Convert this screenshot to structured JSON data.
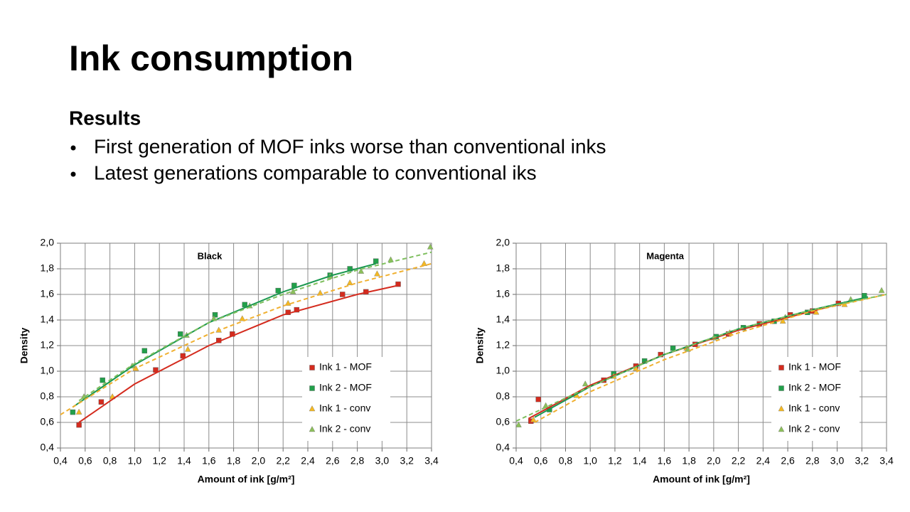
{
  "title": "Ink consumption",
  "section": "Results",
  "bullets": [
    "First generation of MOF inks worse than conventional inks",
    "Latest generations comparable to conventional iks"
  ],
  "chart_data": [
    {
      "type": "scatter",
      "title": "Black",
      "x_label": "Amount of ink [g/m²]",
      "y_label": "Density",
      "grid": true,
      "xlim": [
        0.4,
        3.4
      ],
      "ylim": [
        0.4,
        2.0
      ],
      "xticks": [
        {
          "value": 0.4,
          "label": "0,4"
        },
        {
          "value": 0.6,
          "label": "0,6"
        },
        {
          "value": 0.8,
          "label": "0,8"
        },
        {
          "value": 1.0,
          "label": "1,0"
        },
        {
          "value": 1.2,
          "label": "1,2"
        },
        {
          "value": 1.4,
          "label": "1,4"
        },
        {
          "value": 1.6,
          "label": "1,6"
        },
        {
          "value": 1.8,
          "label": "1,8"
        },
        {
          "value": 2.0,
          "label": "2,0"
        },
        {
          "value": 2.2,
          "label": "2,2"
        },
        {
          "value": 2.4,
          "label": "2,4"
        },
        {
          "value": 2.6,
          "label": "2,6"
        },
        {
          "value": 2.8,
          "label": "2,8"
        },
        {
          "value": 3.0,
          "label": "3,0"
        },
        {
          "value": 3.2,
          "label": "3,2"
        },
        {
          "value": 3.4,
          "label": "3,4"
        }
      ],
      "yticks": [
        {
          "value": 0.4,
          "label": "0,4"
        },
        {
          "value": 0.6,
          "label": "0,6"
        },
        {
          "value": 0.8,
          "label": "0,8"
        },
        {
          "value": 1.0,
          "label": "1,0"
        },
        {
          "value": 1.2,
          "label": "1,2"
        },
        {
          "value": 1.4,
          "label": "1,4"
        },
        {
          "value": 1.6,
          "label": "1,6"
        },
        {
          "value": 1.8,
          "label": "1,8"
        },
        {
          "value": 2.0,
          "label": "2,0"
        }
      ],
      "series": [
        {
          "name": "Ink 1 - MOF",
          "color": "#d42b1e",
          "marker": "square",
          "x": [
            0.55,
            0.73,
            1.17,
            1.39,
            1.68,
            1.79,
            2.24,
            2.31,
            2.68,
            2.87,
            3.13
          ],
          "values": [
            0.58,
            0.76,
            1.01,
            1.12,
            1.24,
            1.29,
            1.46,
            1.48,
            1.6,
            1.62,
            1.68
          ],
          "trend": {
            "color": "#d42b1e",
            "dashed": false,
            "x": [
              0.55,
              1.0,
              1.6,
              2.2,
              2.8,
              3.13
            ],
            "y": [
              0.6,
              0.9,
              1.2,
              1.44,
              1.6,
              1.67
            ]
          }
        },
        {
          "name": "Ink 2 - MOF",
          "color": "#22a04a",
          "marker": "square",
          "x": [
            0.5,
            0.74,
            1.08,
            1.37,
            1.65,
            1.89,
            2.16,
            2.29,
            2.58,
            2.74,
            2.95
          ],
          "values": [
            0.68,
            0.93,
            1.16,
            1.29,
            1.44,
            1.52,
            1.63,
            1.67,
            1.75,
            1.8,
            1.86
          ],
          "trend": {
            "color": "#1a9850",
            "dashed": false,
            "x": [
              0.5,
              1.0,
              1.6,
              2.2,
              2.6,
              2.95
            ],
            "y": [
              0.72,
              1.05,
              1.38,
              1.62,
              1.75,
              1.84
            ]
          }
        },
        {
          "name": "Ink 1 - conv",
          "color": "#f5b921",
          "marker": "triangle",
          "x": [
            0.55,
            0.82,
            1.01,
            1.43,
            1.68,
            1.87,
            2.24,
            2.5,
            2.74,
            2.96,
            3.34
          ],
          "values": [
            0.68,
            0.8,
            1.02,
            1.17,
            1.32,
            1.41,
            1.53,
            1.61,
            1.69,
            1.76,
            1.84
          ],
          "trend": {
            "color": "#f0b030",
            "dashed": true,
            "x": [
              0.4,
              1.0,
              1.6,
              2.2,
              2.8,
              3.4
            ],
            "y": [
              0.66,
              1.02,
              1.29,
              1.51,
              1.69,
              1.84
            ]
          }
        },
        {
          "name": "Ink 2 - conv",
          "color": "#8cc05a",
          "marker": "triangle",
          "x": [
            0.59,
            0.98,
            1.42,
            1.64,
            1.93,
            2.28,
            2.58,
            2.83,
            3.07,
            3.39
          ],
          "values": [
            0.8,
            1.04,
            1.28,
            1.41,
            1.51,
            1.62,
            1.74,
            1.78,
            1.87,
            1.97
          ],
          "trend": {
            "color": "#7fbf5f",
            "dashed": true,
            "x": [
              0.55,
              1.0,
              1.6,
              2.2,
              2.8,
              3.4
            ],
            "y": [
              0.77,
              1.06,
              1.38,
              1.6,
              1.79,
              1.93
            ]
          }
        }
      ]
    },
    {
      "type": "scatter",
      "title": "Magenta",
      "x_label": "Amount of ink [g/m²]",
      "y_label": "Density",
      "grid": true,
      "xlim": [
        0.4,
        3.4
      ],
      "ylim": [
        0.4,
        2.0
      ],
      "xticks": [
        {
          "value": 0.4,
          "label": "0,4"
        },
        {
          "value": 0.6,
          "label": "0,6"
        },
        {
          "value": 0.8,
          "label": "0,8"
        },
        {
          "value": 1.0,
          "label": "1,0"
        },
        {
          "value": 1.2,
          "label": "1,2"
        },
        {
          "value": 1.4,
          "label": "1,4"
        },
        {
          "value": 1.6,
          "label": "1,6"
        },
        {
          "value": 1.8,
          "label": "1,8"
        },
        {
          "value": 2.0,
          "label": "2,0"
        },
        {
          "value": 2.2,
          "label": "2,2"
        },
        {
          "value": 2.4,
          "label": "2,4"
        },
        {
          "value": 2.6,
          "label": "2,6"
        },
        {
          "value": 2.8,
          "label": "2,8"
        },
        {
          "value": 3.0,
          "label": "3,0"
        },
        {
          "value": 3.2,
          "label": "3,2"
        },
        {
          "value": 3.4,
          "label": "3,4"
        }
      ],
      "yticks": [
        {
          "value": 0.4,
          "label": "0,4"
        },
        {
          "value": 0.6,
          "label": "0,6"
        },
        {
          "value": 0.8,
          "label": "0,8"
        },
        {
          "value": 1.0,
          "label": "1,0"
        },
        {
          "value": 1.2,
          "label": "1,2"
        },
        {
          "value": 1.4,
          "label": "1,4"
        },
        {
          "value": 1.6,
          "label": "1,6"
        },
        {
          "value": 1.8,
          "label": "1,8"
        },
        {
          "value": 2.0,
          "label": "2,0"
        }
      ],
      "series": [
        {
          "name": "Ink 1 - MOF",
          "color": "#d42b1e",
          "marker": "square",
          "x": [
            0.52,
            0.58,
            1.11,
            1.37,
            1.57,
            1.85,
            2.12,
            2.37,
            2.62,
            2.8,
            3.01
          ],
          "values": [
            0.61,
            0.78,
            0.93,
            1.04,
            1.13,
            1.21,
            1.29,
            1.37,
            1.44,
            1.47,
            1.53
          ],
          "trend": {
            "color": "#d42b1e",
            "dashed": false,
            "x": [
              0.5,
              1.0,
              1.6,
              2.2,
              2.8,
              3.0
            ],
            "y": [
              0.63,
              0.89,
              1.13,
              1.32,
              1.47,
              1.52
            ]
          }
        },
        {
          "name": "Ink 2 - MOF",
          "color": "#22a04a",
          "marker": "square",
          "x": [
            0.67,
            1.19,
            1.44,
            1.67,
            2.02,
            2.24,
            2.49,
            2.76,
            3.22
          ],
          "values": [
            0.7,
            0.98,
            1.08,
            1.18,
            1.27,
            1.34,
            1.39,
            1.46,
            1.59
          ],
          "trend": {
            "color": "#1a9850",
            "dashed": false,
            "x": [
              0.55,
              1.0,
              1.6,
              2.2,
              2.8,
              3.25
            ],
            "y": [
              0.64,
              0.88,
              1.13,
              1.33,
              1.48,
              1.58
            ]
          }
        },
        {
          "name": "Ink 1 - conv",
          "color": "#f5b921",
          "marker": "triangle",
          "x": [
            0.54,
            0.89,
            1.19,
            1.37,
            1.78,
            2.13,
            2.56,
            2.83,
            3.06
          ],
          "values": [
            0.62,
            0.81,
            0.96,
            1.02,
            1.18,
            1.3,
            1.39,
            1.46,
            1.52
          ],
          "trend": {
            "color": "#f0b030",
            "dashed": true,
            "x": [
              0.55,
              1.0,
              1.6,
              2.2,
              2.8,
              3.4
            ],
            "y": [
              0.6,
              0.84,
              1.09,
              1.3,
              1.47,
              1.6
            ]
          }
        },
        {
          "name": "Ink 2 - conv",
          "color": "#8cc05a",
          "marker": "triangle",
          "x": [
            0.42,
            0.64,
            0.96,
            1.79,
            2.0,
            2.58,
            3.11,
            3.36
          ],
          "values": [
            0.58,
            0.73,
            0.9,
            1.17,
            1.26,
            1.42,
            1.56,
            1.63
          ],
          "trend": {
            "color": "#7fbf5f",
            "dashed": true,
            "x": [
              0.4,
              1.0,
              1.6,
              2.2,
              2.8,
              3.4
            ],
            "y": [
              0.61,
              0.88,
              1.13,
              1.33,
              1.48,
              1.6
            ]
          }
        }
      ]
    }
  ]
}
